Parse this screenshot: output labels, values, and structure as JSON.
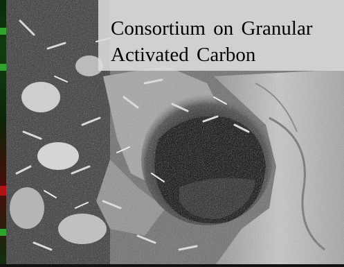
{
  "figure": {
    "caption_line1": "Consortium on Granular",
    "caption_line2": "Activated Carbon"
  },
  "colors": {
    "caption_panel": "#dcdcdc",
    "caption_text": "#000000",
    "micrograph_base": "#6f6f6f",
    "fluorescence_green": "#2fa32a",
    "fluorescence_red": "#b01515"
  },
  "image_description_icons": [
    "sem-micrograph",
    "fluorescence-strip"
  ]
}
